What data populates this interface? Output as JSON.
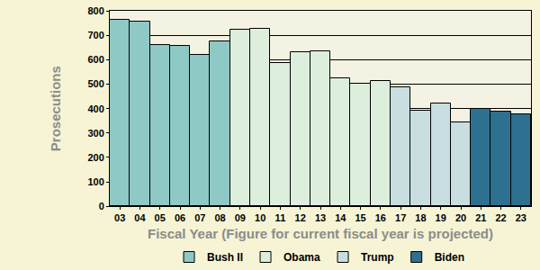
{
  "chart_data": {
    "type": "bar",
    "x_label": "Fiscal Year (Figure for current fiscal year is projected)",
    "y_label": "Prosecutions",
    "categories": [
      "03",
      "04",
      "05",
      "06",
      "07",
      "08",
      "09",
      "10",
      "11",
      "12",
      "13",
      "14",
      "15",
      "16",
      "17",
      "18",
      "19",
      "20",
      "21",
      "22",
      "23"
    ],
    "series": [
      {
        "name": "Bush II",
        "color": "#8fc9c6",
        "values": [
          765,
          757,
          660,
          657,
          618,
          675,
          null,
          null,
          null,
          null,
          null,
          null,
          null,
          null,
          null,
          null,
          null,
          null,
          null,
          null,
          null
        ]
      },
      {
        "name": "Obama",
        "color": "#ddeedd",
        "values": [
          null,
          null,
          null,
          null,
          null,
          null,
          722,
          727,
          585,
          632,
          636,
          525,
          503,
          514,
          null,
          null,
          null,
          null,
          null,
          null,
          null
        ]
      },
      {
        "name": "Trump",
        "color": "#c9dee0",
        "values": [
          null,
          null,
          null,
          null,
          null,
          null,
          null,
          null,
          null,
          null,
          null,
          null,
          null,
          null,
          487,
          392,
          420,
          342,
          null,
          null,
          null
        ]
      },
      {
        "name": "Biden",
        "color": "#2e7090",
        "values": [
          null,
          null,
          null,
          null,
          null,
          null,
          null,
          null,
          null,
          null,
          null,
          null,
          null,
          null,
          null,
          null,
          null,
          null,
          398,
          388,
          378
        ]
      }
    ],
    "ylim": [
      0,
      800
    ],
    "yticks": [
      0,
      100,
      200,
      300,
      400,
      500,
      600,
      700,
      800
    ],
    "grid": true,
    "legend": "bottom"
  }
}
